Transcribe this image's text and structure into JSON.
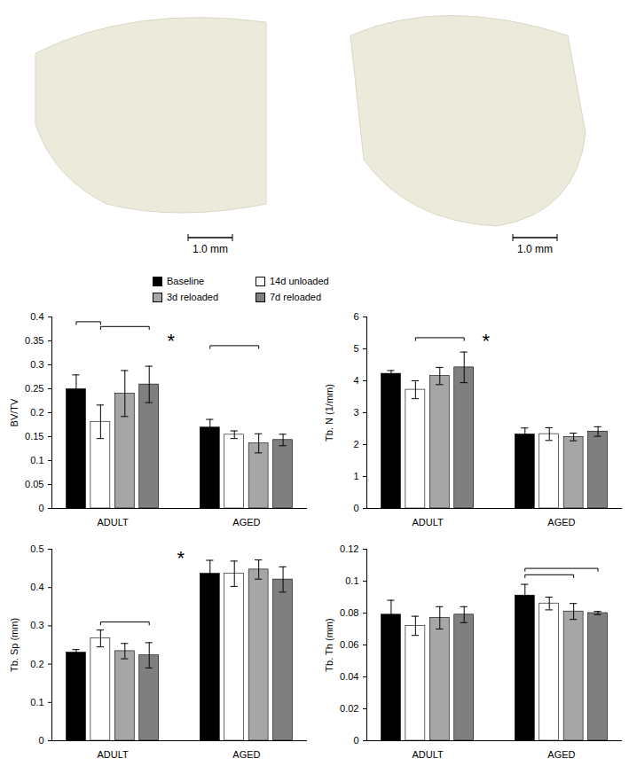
{
  "images": [
    {
      "scale_bar": "1.0 mm"
    },
    {
      "scale_bar": "1.0 mm"
    }
  ],
  "chart_data": [
    {
      "type": "bar",
      "ylabel": "BV/TV",
      "legend": "top",
      "categories": [
        "ADULT",
        "AGED"
      ],
      "series": [
        {
          "name": "Baseline",
          "color": "#000000",
          "values": [
            0.249,
            0.169
          ],
          "errors": [
            0.03,
            0.017
          ]
        },
        {
          "name": "14d unloaded",
          "color": "#ffffff",
          "values": [
            0.181,
            0.154
          ],
          "errors": [
            0.035,
            0.008
          ]
        },
        {
          "name": "3d reloaded",
          "color": "#a6a6a6",
          "values": [
            0.24,
            0.136
          ],
          "errors": [
            0.048,
            0.02
          ]
        },
        {
          "name": "7d reloaded",
          "color": "#7f7f7f",
          "values": [
            0.259,
            0.143
          ],
          "errors": [
            0.038,
            0.012
          ]
        }
      ],
      "ylim": [
        0,
        0.4
      ],
      "yticks": [
        0,
        0.05,
        0.1,
        0.15,
        0.2,
        0.25,
        0.3,
        0.35,
        0.4
      ],
      "brackets": [
        {
          "group": "ADULT",
          "from": "Baseline",
          "to": "14d unloaded",
          "y": 0.39
        },
        {
          "group": "ADULT",
          "from": "14d unloaded",
          "to": "7d reloaded",
          "y": 0.38
        },
        {
          "group": "AGED",
          "from": "Baseline",
          "to": "3d reloaded",
          "y": 0.34
        }
      ],
      "annotations": [
        {
          "text": "*",
          "group": "ADULT",
          "after": "7d reloaded",
          "y": 0.36
        }
      ]
    },
    {
      "type": "bar",
      "ylabel": "Tb. N (1/mm)",
      "categories": [
        "ADULT",
        "AGED"
      ],
      "series": [
        {
          "name": "Baseline",
          "color": "#000000",
          "values": [
            4.22,
            2.32
          ],
          "errors": [
            0.1,
            0.2
          ]
        },
        {
          "name": "14d unloaded",
          "color": "#ffffff",
          "values": [
            3.72,
            2.33
          ],
          "errors": [
            0.28,
            0.2
          ]
        },
        {
          "name": "3d reloaded",
          "color": "#a6a6a6",
          "values": [
            4.15,
            2.24
          ],
          "errors": [
            0.27,
            0.12
          ]
        },
        {
          "name": "7d reloaded",
          "color": "#7f7f7f",
          "values": [
            4.42,
            2.41
          ],
          "errors": [
            0.48,
            0.15
          ]
        }
      ],
      "ylim": [
        0,
        6
      ],
      "yticks": [
        0,
        1,
        2,
        3,
        4,
        5,
        6
      ],
      "brackets": [
        {
          "group": "ADULT",
          "from": "14d unloaded",
          "to": "7d reloaded",
          "y": 5.35
        }
      ],
      "annotations": [
        {
          "text": "*",
          "group": "ADULT",
          "after": "7d reloaded",
          "y": 5.4
        }
      ]
    },
    {
      "type": "bar",
      "ylabel": "Tb. Sp (mm)",
      "categories": [
        "ADULT",
        "AGED"
      ],
      "series": [
        {
          "name": "Baseline",
          "color": "#000000",
          "values": [
            0.23,
            0.436
          ],
          "errors": [
            0.008,
            0.035
          ]
        },
        {
          "name": "14d unloaded",
          "color": "#ffffff",
          "values": [
            0.267,
            0.436
          ],
          "errors": [
            0.022,
            0.033
          ]
        },
        {
          "name": "3d reloaded",
          "color": "#a6a6a6",
          "values": [
            0.234,
            0.447
          ],
          "errors": [
            0.02,
            0.025
          ]
        },
        {
          "name": "7d reloaded",
          "color": "#7f7f7f",
          "values": [
            0.223,
            0.421
          ],
          "errors": [
            0.033,
            0.033
          ]
        }
      ],
      "ylim": [
        0,
        0.5
      ],
      "yticks": [
        0,
        0.1,
        0.2,
        0.3,
        0.4,
        0.5
      ],
      "brackets": [
        {
          "group": "ADULT",
          "from": "14d unloaded",
          "to": "7d reloaded",
          "y": 0.31
        }
      ],
      "annotations": [
        {
          "text": "*",
          "group": "AGED",
          "before": "Baseline",
          "y": 0.49
        }
      ]
    },
    {
      "type": "bar",
      "ylabel": "Tb. Th (mm)",
      "categories": [
        "ADULT",
        "AGED"
      ],
      "series": [
        {
          "name": "Baseline",
          "color": "#000000",
          "values": [
            0.079,
            0.091
          ],
          "errors": [
            0.009,
            0.007
          ]
        },
        {
          "name": "14d unloaded",
          "color": "#ffffff",
          "values": [
            0.072,
            0.086
          ],
          "errors": [
            0.006,
            0.004
          ]
        },
        {
          "name": "3d reloaded",
          "color": "#a6a6a6",
          "values": [
            0.077,
            0.081
          ],
          "errors": [
            0.007,
            0.005
          ]
        },
        {
          "name": "7d reloaded",
          "color": "#7f7f7f",
          "values": [
            0.079,
            0.08
          ],
          "errors": [
            0.005,
            0.001
          ]
        }
      ],
      "ylim": [
        0,
        0.12
      ],
      "yticks": [
        0,
        0.02,
        0.04,
        0.06,
        0.08,
        0.1,
        0.12
      ],
      "brackets": [
        {
          "group": "AGED",
          "from": "Baseline",
          "to": "3d reloaded",
          "y": 0.104
        },
        {
          "group": "AGED",
          "from": "Baseline",
          "to": "7d reloaded",
          "y": 0.108
        }
      ],
      "annotations": []
    }
  ]
}
